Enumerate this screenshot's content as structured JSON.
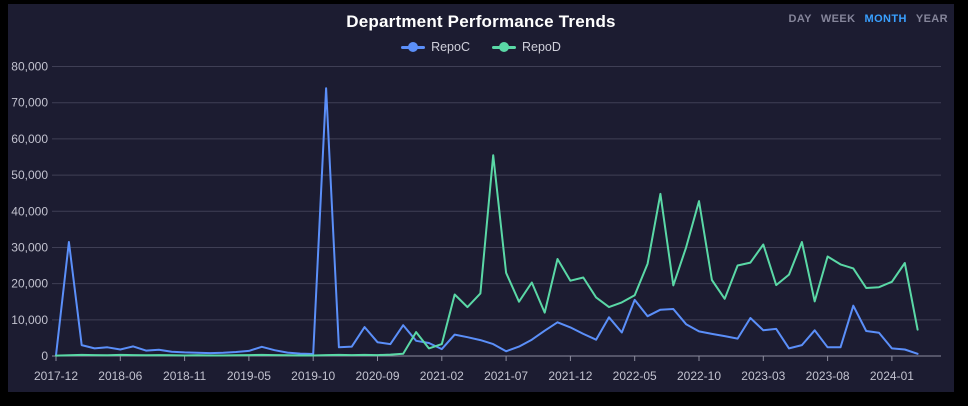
{
  "header": {
    "title": "Department Performance Trends"
  },
  "range_selector": {
    "options": [
      {
        "label": "DAY",
        "active": false
      },
      {
        "label": "WEEK",
        "active": false
      },
      {
        "label": "MONTH",
        "active": true
      },
      {
        "label": "YEAR",
        "active": false
      }
    ]
  },
  "legend": [
    {
      "name": "RepoC",
      "color": "#5B8FF9"
    },
    {
      "name": "RepoD",
      "color": "#5AD8A6"
    }
  ],
  "colors": {
    "background": "#000000",
    "panel": "#1c1c31",
    "grid": "#3f3f55",
    "axis": "#8d8d9e",
    "axis_label": "#c2c2cf",
    "title": "#ffffff",
    "legend_text": "#cfcfda",
    "range_active": "#39a0ff",
    "range_inactive": "#85859a",
    "series_repoc": "#5B8FF9",
    "series_repod": "#5AD8A6"
  },
  "chart_data": {
    "type": "line",
    "title": "Department Performance Trends",
    "xlabel": "",
    "ylabel": "",
    "ylim": [
      0,
      80000
    ],
    "grid": true,
    "legend_position": "top",
    "y_ticks": [
      0,
      10000,
      20000,
      30000,
      40000,
      50000,
      60000,
      70000,
      80000
    ],
    "y_tick_labels": [
      "0",
      "10,000",
      "20,000",
      "30,000",
      "40,000",
      "50,000",
      "60,000",
      "70,000",
      "80,000"
    ],
    "x_tick_indices": [
      0,
      5,
      10,
      15,
      20,
      25,
      30,
      35,
      40,
      45,
      50,
      55,
      60,
      65
    ],
    "x_tick_labels": [
      "2017-12",
      "2018-06",
      "2018-11",
      "2019-05",
      "2019-10",
      "2020-09",
      "2021-02",
      "2021-07",
      "2021-12",
      "2022-05",
      "2022-10",
      "2023-03",
      "2023-08",
      "2024-01"
    ],
    "series": [
      {
        "name": "RepoC",
        "color": "#5B8FF9",
        "values": [
          200,
          31500,
          3000,
          2100,
          2400,
          1800,
          2650,
          1500,
          1700,
          1200,
          1000,
          900,
          800,
          900,
          1100,
          1400,
          2550,
          1600,
          950,
          650,
          550,
          74000,
          2400,
          2600,
          8000,
          3800,
          3300,
          8500,
          4200,
          3600,
          1900,
          5900,
          5200,
          4400,
          3300,
          1300,
          2600,
          4500,
          7000,
          9300,
          7900,
          6100,
          4500,
          10700,
          6500,
          15500,
          11000,
          12800,
          13000,
          8800,
          6800,
          6100,
          5500,
          4800,
          10500,
          7100,
          7500,
          2100,
          3000,
          7100,
          2400,
          2400,
          13900,
          6900,
          6400,
          2100,
          1800,
          600
        ]
      },
      {
        "name": "RepoD",
        "color": "#5AD8A6",
        "values": [
          100,
          200,
          300,
          250,
          200,
          300,
          250,
          200,
          250,
          200,
          150,
          200,
          150,
          150,
          200,
          250,
          300,
          250,
          200,
          150,
          150,
          250,
          300,
          250,
          300,
          250,
          400,
          600,
          6600,
          2100,
          3300,
          17000,
          13500,
          17300,
          55500,
          23000,
          15000,
          20300,
          12000,
          26800,
          20800,
          21700,
          16200,
          13500,
          14800,
          16800,
          25500,
          44800,
          19500,
          30000,
          42800,
          21000,
          15800,
          25000,
          25800,
          30800,
          19600,
          22500,
          31500,
          15100,
          27500,
          25300,
          24200,
          18800,
          19000,
          20500,
          25700,
          7300
        ]
      }
    ]
  }
}
